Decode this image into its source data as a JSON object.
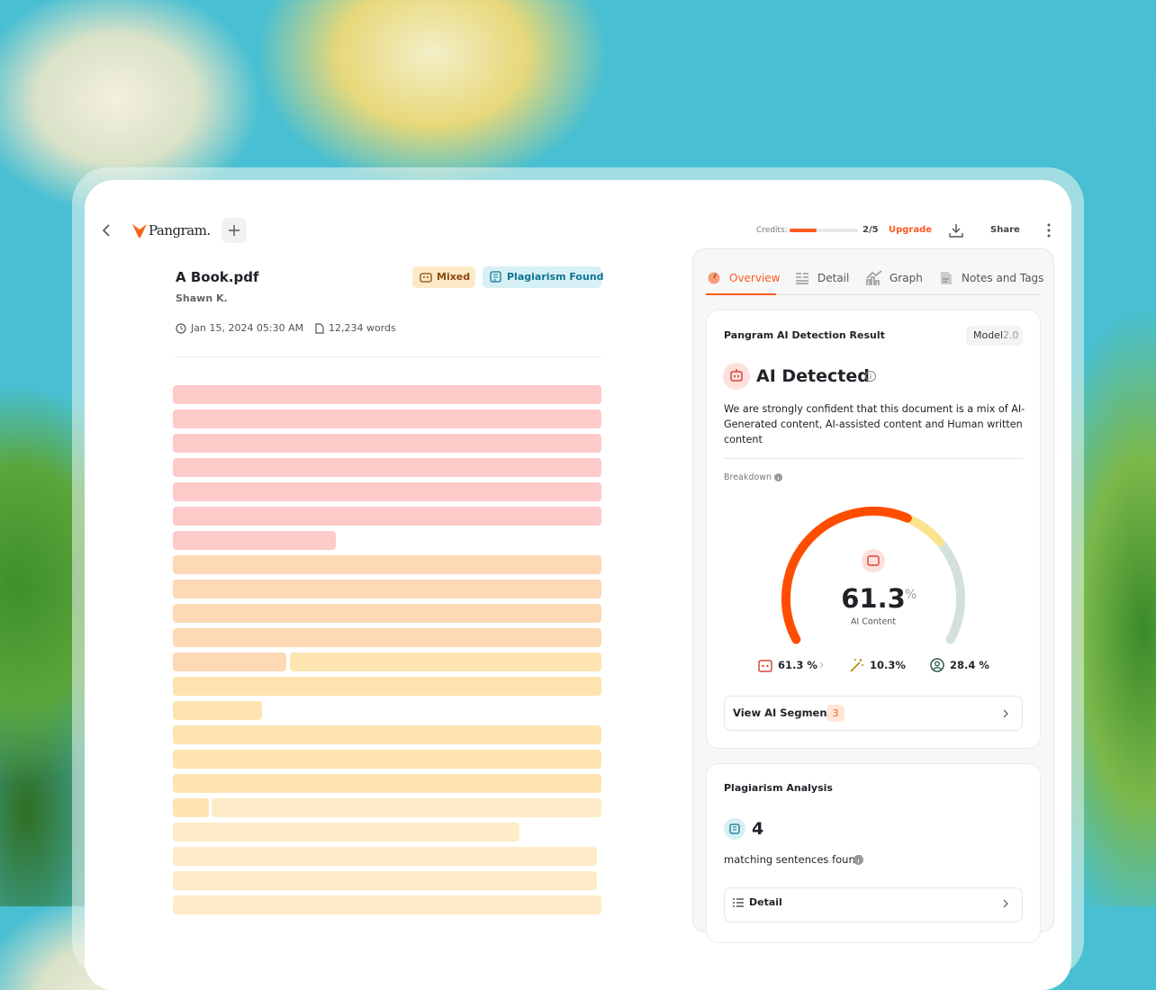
{
  "header": {
    "brand": "Pangram.",
    "credits": {
      "label": "Credits:",
      "used": 2,
      "total": 5,
      "text": "2/5"
    },
    "upgrade": "Upgrade",
    "share": "Share"
  },
  "document": {
    "title": "A Book.pdf",
    "author": "Shawn K.",
    "badges": [
      "Mixed",
      "Plagiarism Found"
    ],
    "date": "Jan 15, 2024 05:30 AM",
    "words": "12,234 words"
  },
  "panel": {
    "tabs": [
      "Overview",
      "Detail",
      "Graph",
      "Notes and Tags"
    ],
    "detection": {
      "title": "Pangram AI Detection Result",
      "model_label": "Model",
      "model_version": "2.0",
      "verdict": "AI Detected",
      "description": "We are strongly confident that this document is a mix of AI-Generated content, AI-assisted content and Human written content",
      "breakdown_label": "Breakdown",
      "gauge": {
        "value": 61.3,
        "unit": "%",
        "label": "AI Content"
      },
      "breakdown": [
        {
          "value": 61.3,
          "label": "61.3 %",
          "color": "#ff4d00"
        },
        {
          "value": 10.3,
          "label": "10.3%",
          "color": "#fbe38e"
        },
        {
          "value": 28.4,
          "label": "28.4 %",
          "color": "#d3e0db"
        }
      ],
      "segments_button": "View AI Segments",
      "segments_count": 3
    },
    "plagiarism": {
      "title": "Plagiarism Analysis",
      "count": 4,
      "caption": "matching sentences found",
      "button": "Detail"
    }
  }
}
